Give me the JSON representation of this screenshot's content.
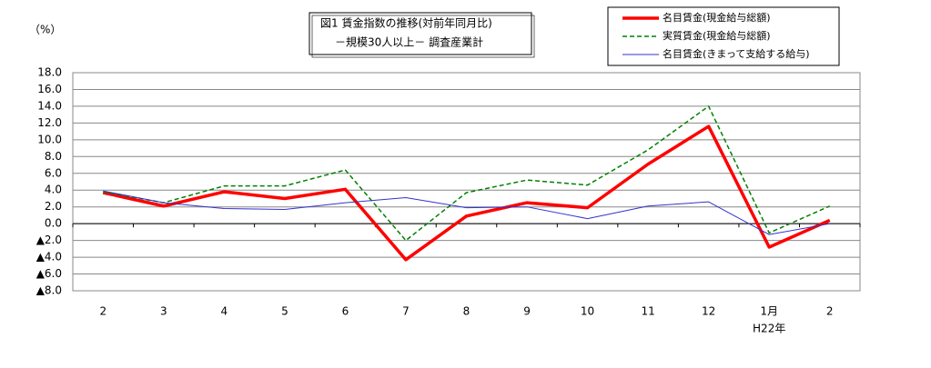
{
  "chart_data": {
    "type": "line",
    "title": "図1 賃金指数の推移(対前年同月比)",
    "subtitle": "－規模30人以上－ 調査産業計",
    "y_unit": "（%）",
    "year_label": "H22年",
    "categories": [
      "2",
      "3",
      "4",
      "5",
      "6",
      "7",
      "8",
      "9",
      "10",
      "11",
      "12",
      "1月",
      "2"
    ],
    "series": [
      {
        "name": "名目賃金(現金給与総額)",
        "color": "#ff0000",
        "width": 3.5,
        "dash": "none",
        "values": [
          3.7,
          2.1,
          3.8,
          3.0,
          4.1,
          -4.3,
          0.9,
          2.5,
          1.9,
          7.1,
          11.6,
          -2.8,
          0.4
        ]
      },
      {
        "name": "実質賃金(現金給与総額)",
        "color": "#008000",
        "width": 1.5,
        "dash": "5 3",
        "values": [
          3.8,
          2.5,
          4.5,
          4.5,
          6.4,
          -2.0,
          3.7,
          5.2,
          4.6,
          8.8,
          14.0,
          -1.1,
          2.1
        ]
      },
      {
        "name": "名目賃金(きまって支給する給与)",
        "color": "#3333cc",
        "width": 1,
        "dash": "none",
        "values": [
          3.9,
          2.5,
          1.8,
          1.7,
          2.5,
          3.1,
          1.9,
          2.0,
          0.6,
          2.1,
          2.6,
          -1.3,
          0.0
        ]
      }
    ],
    "ylim": [
      -8,
      18
    ],
    "yticks": [
      {
        "value": -8,
        "label": "▲8.0"
      },
      {
        "value": -6,
        "label": "▲6.0"
      },
      {
        "value": -4,
        "label": "▲4.0"
      },
      {
        "value": -2,
        "label": "▲2.0"
      },
      {
        "value": 0,
        "label": "0.0"
      },
      {
        "value": 2,
        "label": "2.0"
      },
      {
        "value": 4,
        "label": "4.0"
      },
      {
        "value": 6,
        "label": "6.0"
      },
      {
        "value": 8,
        "label": "8.0"
      },
      {
        "value": 10,
        "label": "10.0"
      },
      {
        "value": 12,
        "label": "12.0"
      },
      {
        "value": 14,
        "label": "14.0"
      },
      {
        "value": 16,
        "label": "16.0"
      },
      {
        "value": 18,
        "label": "18.0"
      }
    ],
    "grid": true
  }
}
